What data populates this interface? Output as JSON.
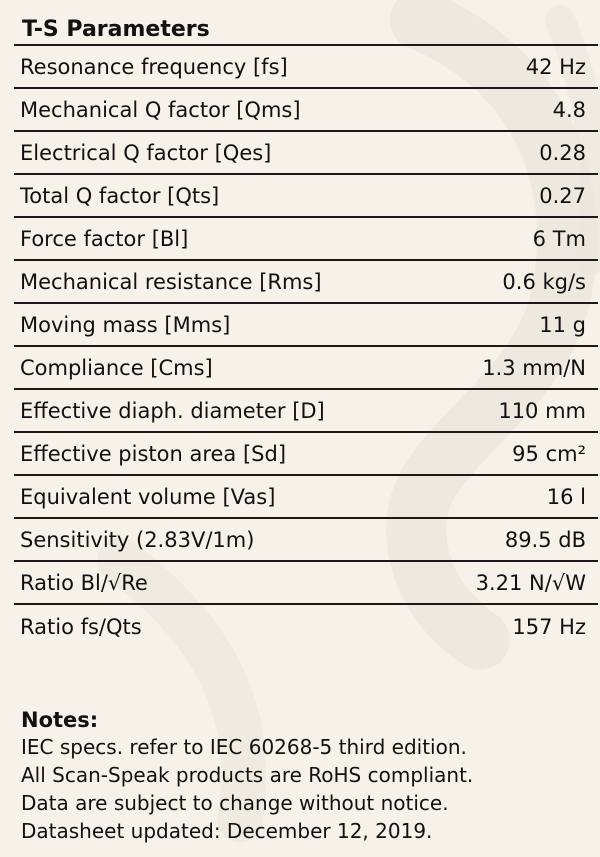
{
  "table": {
    "title": "T-S Parameters",
    "rows": [
      {
        "label": "Resonance frequency [fs]",
        "value": "42 Hz"
      },
      {
        "label": "Mechanical Q factor [Qms]",
        "value": "4.8"
      },
      {
        "label": "Electrical Q factor [Qes]",
        "value": "0.28"
      },
      {
        "label": "Total Q factor [Qts]",
        "value": "0.27"
      },
      {
        "label": "Force factor [Bl]",
        "value": "6 Tm"
      },
      {
        "label": "Mechanical resistance [Rms]",
        "value": "0.6 kg/s"
      },
      {
        "label": "Moving mass [Mms]",
        "value": "11 g"
      },
      {
        "label": "Compliance [Cms]",
        "value": "1.3 mm/N"
      },
      {
        "label": "Effective diaph. diameter [D]",
        "value": "110 mm"
      },
      {
        "label": "Effective piston area [Sd]",
        "value": "95 cm²"
      },
      {
        "label": "Equivalent volume [Vas]",
        "value": "16 l"
      },
      {
        "label": "Sensitivity (2.83V/1m)",
        "value": "89.5 dB"
      },
      {
        "label": "Ratio Bl/√Re",
        "value": "3.21 N/√W"
      },
      {
        "label": "Ratio fs/Qts",
        "value": "157 Hz"
      }
    ]
  },
  "notes": {
    "title": "Notes:",
    "lines": [
      "IEC specs. refer to IEC 60268-5 third edition.",
      "All Scan-Speak products are RoHS compliant.",
      "Data are subject to change without notice.",
      "Datasheet updated: December 12, 2019."
    ]
  },
  "colors": {
    "background": "#f6f2e9",
    "text": "#111111",
    "rule": "#1a1a1a",
    "watermark": "#ebe6da"
  }
}
